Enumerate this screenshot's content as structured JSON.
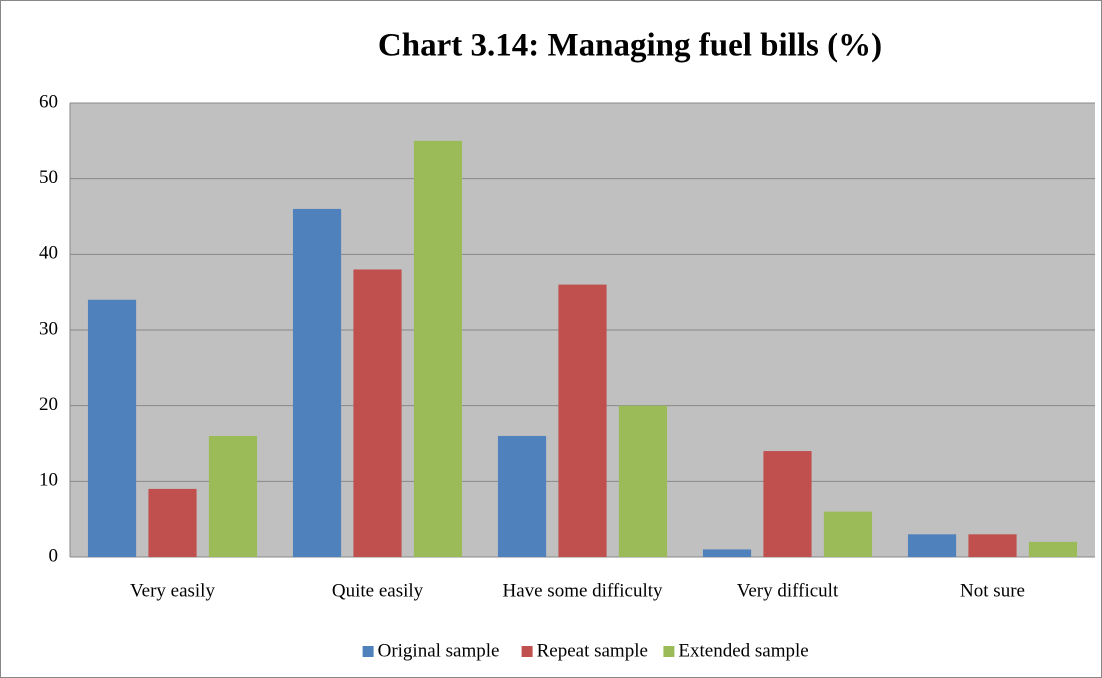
{
  "chart_data": {
    "type": "bar",
    "title": "Chart 3.14: Managing fuel bills (%)",
    "categories": [
      "Very easily",
      "Quite easily",
      "Have some difficulty",
      "Very difficult",
      "Not sure"
    ],
    "series": [
      {
        "name": "Original sample",
        "color": "#4f81bd",
        "values": [
          34,
          46,
          16,
          1,
          3
        ]
      },
      {
        "name": "Repeat sample",
        "color": "#c0504d",
        "values": [
          9,
          38,
          36,
          14,
          3
        ]
      },
      {
        "name": "Extended sample",
        "color": "#9bbb59",
        "values": [
          16,
          55,
          20,
          6,
          2
        ]
      }
    ],
    "ylim": [
      0,
      60
    ],
    "yticks": [
      0,
      10,
      20,
      30,
      40,
      50,
      60
    ],
    "grid": true,
    "legend": "bottom"
  }
}
